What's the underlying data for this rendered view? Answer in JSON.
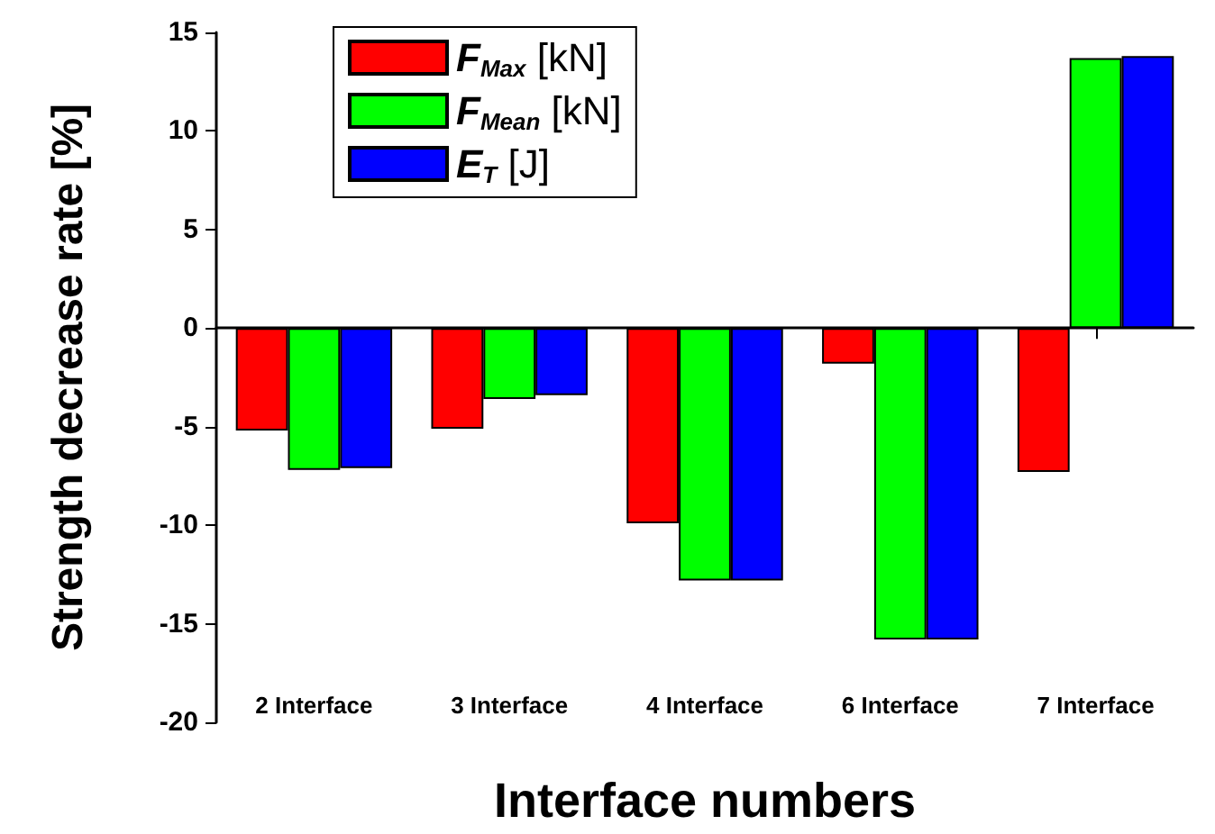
{
  "chart_data": {
    "type": "bar",
    "xlabel": "Interface numbers",
    "ylabel": "Strength decrease rate [%]",
    "categories": [
      "2 Interface",
      "3 Interface",
      "4 Interface",
      "6 Interface",
      "7 Interface"
    ],
    "series": [
      {
        "name": "F$_{Max}$ [kN]",
        "color": "#ff0000",
        "values": [
          -5.2,
          -5.1,
          -9.9,
          -1.8,
          -7.3
        ]
      },
      {
        "name": "F$_{Mean}$ [kN]",
        "color": "#00ff00",
        "values": [
          -7.2,
          -3.6,
          -12.8,
          -15.8,
          13.7
        ]
      },
      {
        "name": "E$_{T}$ [J]",
        "color": "#0000ff",
        "values": [
          -7.1,
          -3.4,
          -12.8,
          -15.8,
          13.8
        ]
      }
    ],
    "ylim": [
      -20,
      15
    ],
    "yticks": [
      -20,
      -15,
      -10,
      -5,
      0,
      5,
      10,
      15
    ],
    "legend": "top left"
  }
}
